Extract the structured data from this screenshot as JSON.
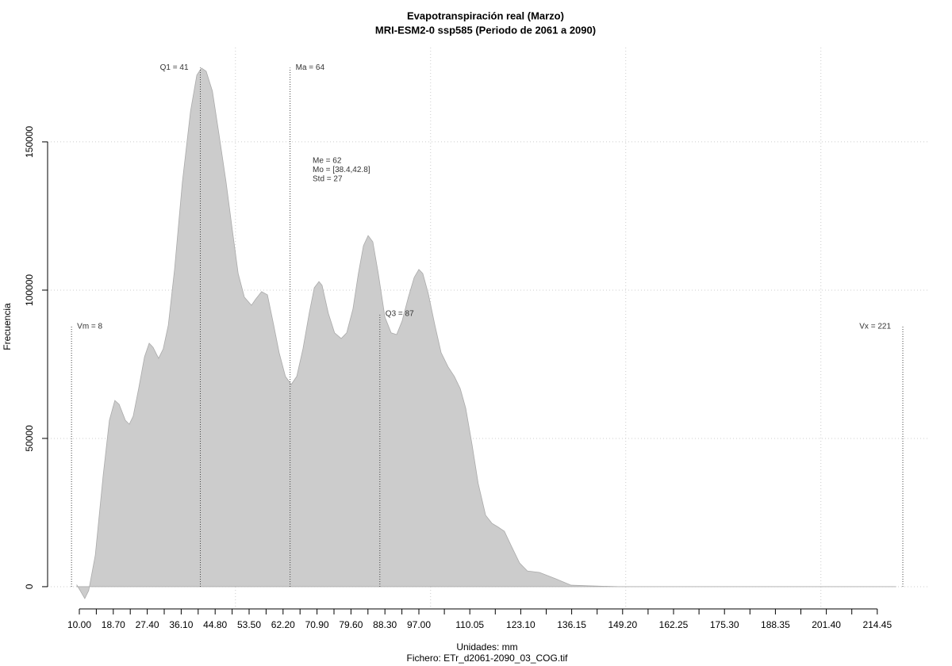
{
  "chart_data": {
    "type": "area",
    "title": "Evapotranspiración real (Marzo)",
    "subtitle": "MRI-ESM2-0 ssp585 (Periodo de 2061 a 2090)",
    "x_label": "Unidades: mm",
    "caption": "Fichero: ETr_d2061-2090_03_COG.tif",
    "y_label": "Frecuencia",
    "color": "#cccccc",
    "grid": true,
    "xlim": [
      1.87,
      227.5
    ],
    "ylim": [
      -7500,
      181800
    ],
    "yticks": [
      0,
      50000,
      100000,
      150000
    ],
    "xticks": [
      {
        "value": 10,
        "label": "10.00"
      },
      {
        "value": 18.7,
        "label": "18.70"
      },
      {
        "value": 27.4,
        "label": "27.40"
      },
      {
        "value": 36.1,
        "label": "36.10"
      },
      {
        "value": 44.8,
        "label": "44.80"
      },
      {
        "value": 53.5,
        "label": "53.50"
      },
      {
        "value": 62.2,
        "label": "62.20"
      },
      {
        "value": 70.9,
        "label": "70.90"
      },
      {
        "value": 79.6,
        "label": "79.60"
      },
      {
        "value": 88.3,
        "label": "88.30"
      },
      {
        "value": 97,
        "label": "97.00"
      },
      {
        "value": 110.05,
        "label": "110.05"
      },
      {
        "value": 123.1,
        "label": "123.10"
      },
      {
        "value": 136.15,
        "label": "136.15"
      },
      {
        "value": 149.2,
        "label": "149.20"
      },
      {
        "value": 162.25,
        "label": "162.25"
      },
      {
        "value": 175.3,
        "label": "175.30"
      },
      {
        "value": 188.35,
        "label": "188.35"
      },
      {
        "value": 201.4,
        "label": "201.40"
      },
      {
        "value": 214.45,
        "label": "214.45"
      }
    ],
    "xminor_ticks": [
      14.35,
      23.05,
      31.75,
      40.45,
      49.15,
      57.85,
      66.55,
      75.25,
      83.95,
      92.65,
      103.525,
      116.575,
      129.625,
      142.675,
      155.725,
      168.775,
      181.825,
      194.875,
      207.925
    ],
    "xgrid": [
      50,
      100,
      150,
      200
    ],
    "x": [
      9.4,
      11.4,
      12.4,
      14.1,
      16.1,
      17.7,
      19.1,
      20.2,
      21.8,
      22.8,
      23.8,
      25.2,
      26.7,
      27.9,
      28.9,
      30.3,
      31.5,
      32.8,
      34.4,
      36.4,
      38.5,
      40.1,
      41.3,
      42.5,
      44.1,
      45.8,
      47.6,
      49.2,
      50.7,
      52.3,
      54.1,
      55.1,
      56.7,
      58.2,
      59.8,
      61.2,
      62.8,
      64.3,
      65.7,
      67.3,
      68.9,
      70.2,
      71.4,
      72.2,
      73.8,
      75.4,
      77.1,
      78.5,
      80.1,
      81.5,
      82.8,
      84.0,
      85.2,
      86.6,
      88.3,
      89.9,
      91.3,
      92.7,
      94.3,
      95.8,
      97.0,
      98.0,
      99.4,
      101.1,
      102.7,
      104.5,
      106.1,
      107.6,
      109.0,
      110.6,
      112.2,
      114.1,
      115.7,
      117.3,
      118.9,
      120.8,
      122.8,
      124.8,
      127.9,
      132.0,
      136.0,
      140.1,
      148.2,
      219.3
    ],
    "values": [
      500,
      -4000,
      -1300,
      10700,
      37400,
      56100,
      62800,
      61500,
      56100,
      54800,
      57500,
      66800,
      77500,
      82100,
      80700,
      77000,
      80200,
      88200,
      107000,
      136400,
      160400,
      172500,
      174900,
      173800,
      167100,
      152400,
      136400,
      120300,
      105600,
      97600,
      94900,
      96800,
      99500,
      98400,
      88200,
      78900,
      70900,
      68200,
      70900,
      80200,
      92200,
      100800,
      102900,
      101600,
      92200,
      85600,
      83700,
      85600,
      93600,
      105600,
      115000,
      118400,
      116300,
      105600,
      90900,
      85600,
      85000,
      89600,
      97600,
      104300,
      107000,
      105600,
      98900,
      88200,
      78900,
      74100,
      70900,
      66800,
      60200,
      48100,
      34800,
      24100,
      21400,
      20100,
      18700,
      13400,
      8000,
      5300,
      4800,
      2700,
      500,
      300,
      0,
      0
    ],
    "markers": [
      {
        "label": "Vm = 8",
        "value": 8,
        "height": 87700
      },
      {
        "label": "Q1 = 41",
        "value": 41,
        "height": 175000
      },
      {
        "label": "Ma = 64",
        "value": 64,
        "height": 175000
      },
      {
        "label": "Q3 = 87",
        "value": 87,
        "height": 92000
      },
      {
        "label": "Vx = 221",
        "value": 221,
        "height": 87700
      }
    ],
    "stats": [
      "Me = 62",
      "Mo = [38.4,42.8]",
      "Std = 27"
    ]
  }
}
